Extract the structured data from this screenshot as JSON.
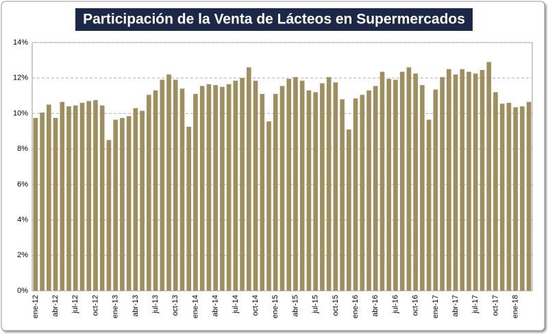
{
  "chart_data": {
    "type": "bar",
    "title": "Participación de la Venta de Lácteos en Supermercados",
    "categories": [
      "ene-12",
      null,
      null,
      "abr-12",
      null,
      null,
      "jul-12",
      null,
      null,
      "oct-12",
      null,
      null,
      "ene-13",
      null,
      null,
      "abr-13",
      null,
      null,
      "jul-13",
      null,
      null,
      "oct-13",
      null,
      null,
      "ene-14",
      null,
      null,
      "abr-14",
      null,
      null,
      "jul-14",
      null,
      null,
      "oct-14",
      null,
      null,
      "ene-15",
      null,
      null,
      "abr-15",
      null,
      null,
      "jul-15",
      null,
      null,
      "oct-15",
      null,
      null,
      "ene-16",
      null,
      null,
      "abr-16",
      null,
      null,
      "jul-16",
      null,
      null,
      "oct-16",
      null,
      null,
      "ene-17",
      null,
      null,
      "abr-17",
      null,
      null,
      "jul-17",
      null,
      null,
      "oct-17",
      null,
      null,
      "ene-18",
      null,
      null
    ],
    "values": [
      9.75,
      10.05,
      10.5,
      9.75,
      10.65,
      10.4,
      10.45,
      10.6,
      10.7,
      10.75,
      10.45,
      8.5,
      9.65,
      9.75,
      9.85,
      10.3,
      10.15,
      11.05,
      11.3,
      11.9,
      12.2,
      11.9,
      11.4,
      9.25,
      11.1,
      11.55,
      11.65,
      11.6,
      11.5,
      11.65,
      11.85,
      12.0,
      12.6,
      11.85,
      11.1,
      9.55,
      11.1,
      11.55,
      11.95,
      12.05,
      11.85,
      11.3,
      11.2,
      11.7,
      12.05,
      11.75,
      10.8,
      9.1,
      10.85,
      11.05,
      11.3,
      11.55,
      12.35,
      11.95,
      11.9,
      12.35,
      12.6,
      12.25,
      11.6,
      9.65,
      11.35,
      12.05,
      12.5,
      12.2,
      12.5,
      12.35,
      12.25,
      12.45,
      12.9,
      11.2,
      10.55,
      10.6,
      10.35,
      10.4,
      10.65
    ],
    "color": "#a08f5e",
    "ylim": [
      0,
      14
    ],
    "yticks": [
      {
        "value": 0,
        "label": "0%"
      },
      {
        "value": 2,
        "label": "2%"
      },
      {
        "value": 4,
        "label": "4%"
      },
      {
        "value": 6,
        "label": "6%"
      },
      {
        "value": 8,
        "label": "8%"
      },
      {
        "value": 10,
        "label": "10%"
      },
      {
        "value": 12,
        "label": "12%"
      },
      {
        "value": 14,
        "label": "14%"
      }
    ],
    "grid": true
  }
}
